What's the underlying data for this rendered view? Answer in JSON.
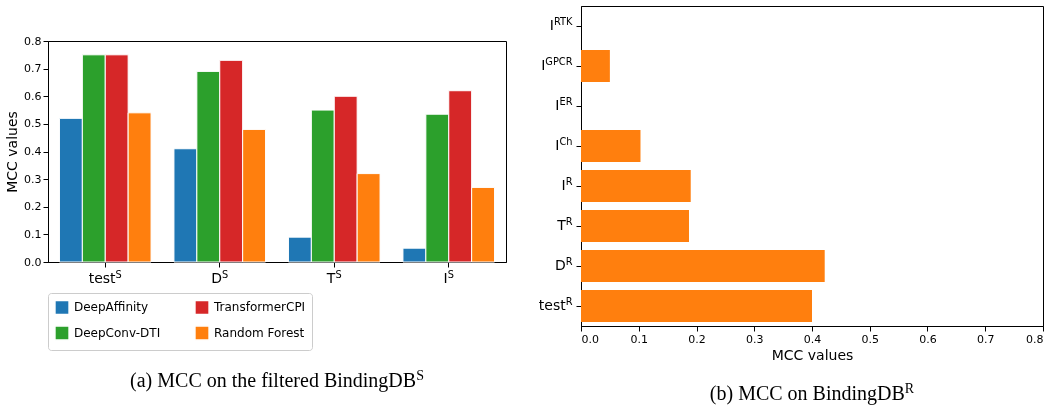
{
  "chart_data": [
    {
      "type": "bar",
      "title": "(a) MCC on the filtered BindingDB$^{S}$",
      "ylabel": "MCC values",
      "categories": [
        "test$^{S}$",
        "D$^{S}$",
        "T$^{S}$",
        "I$^{S}$"
      ],
      "series": [
        {
          "name": "DeepAffinity",
          "color": "#1f77b4",
          "values": [
            0.52,
            0.41,
            0.09,
            0.05
          ]
        },
        {
          "name": "DeepConv-DTI",
          "color": "#2ca02c",
          "values": [
            0.75,
            0.69,
            0.55,
            0.535
          ]
        },
        {
          "name": "TransformerCPI",
          "color": "#d62728",
          "values": [
            0.75,
            0.73,
            0.6,
            0.62
          ]
        },
        {
          "name": "Random Forest",
          "color": "#ff7f0e",
          "values": [
            0.54,
            0.48,
            0.32,
            0.27
          ]
        }
      ],
      "ylim": [
        0,
        0.8
      ],
      "yticks": [
        {
          "value": 0,
          "label": "0.0"
        },
        {
          "value": 0.1,
          "label": "0.1"
        },
        {
          "value": 0.2,
          "label": "0.2"
        },
        {
          "value": 0.3,
          "label": "0.3"
        },
        {
          "value": 0.4,
          "label": "0.4"
        },
        {
          "value": 0.5,
          "label": "0.5"
        },
        {
          "value": 0.6,
          "label": "0.6"
        },
        {
          "value": 0.7,
          "label": "0.7"
        },
        {
          "value": 0.8,
          "label": "0.8"
        }
      ],
      "legend": "bottom"
    },
    {
      "type": "bar",
      "orientation": "horizontal",
      "title": "(b) MCC on BindingDB$^{R}$",
      "xlabel": "MCC values",
      "categories": [
        "I$^{RTK}$",
        "I$^{GPCR}$",
        "I$^{ER}$",
        "I$^{Ch}$",
        "I$^{R}$",
        "T$^{R}$",
        "D$^{R}$",
        "test$^{R}$"
      ],
      "values": [
        0,
        0.05,
        0,
        0.103,
        0.19,
        0.187,
        0.422,
        0.4
      ],
      "color": "#ff7f0e",
      "xlim": [
        0,
        0.8
      ],
      "xticks": [
        {
          "value": 0,
          "label": "0.0"
        },
        {
          "value": 0.1,
          "label": "0.1"
        },
        {
          "value": 0.2,
          "label": "0.2"
        },
        {
          "value": 0.3,
          "label": "0.3"
        },
        {
          "value": 0.4,
          "label": "0.4"
        },
        {
          "value": 0.5,
          "label": "0.5"
        },
        {
          "value": 0.6,
          "label": "0.6"
        },
        {
          "value": 0.7,
          "label": "0.7"
        },
        {
          "value": 0.8,
          "label": "0.8"
        }
      ]
    }
  ]
}
